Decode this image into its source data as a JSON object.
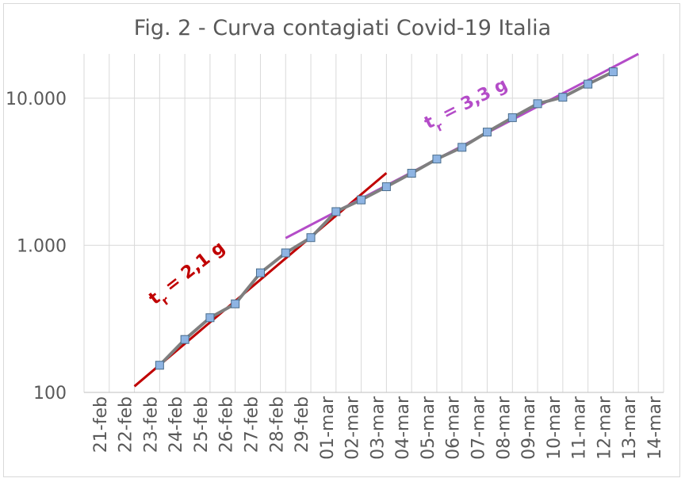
{
  "chart_data": {
    "type": "line",
    "title": "Fig. 2 - Curva contagiati Covid-19 Italia",
    "xlabel": "",
    "ylabel": "",
    "y_scale": "log",
    "ylim": [
      100,
      20000
    ],
    "grid": true,
    "categories": [
      "21-feb",
      "22-feb",
      "23-feb",
      "24-feb",
      "25-feb",
      "26-feb",
      "27-feb",
      "28-feb",
      "29-feb",
      "01-mar",
      "02-mar",
      "03-mar",
      "04-mar",
      "05-mar",
      "06-mar",
      "07-mar",
      "08-mar",
      "09-mar",
      "10-mar",
      "11-mar",
      "12-mar",
      "13-mar",
      "14-mar"
    ],
    "y_ticks": [
      100,
      1000,
      10000
    ],
    "y_tick_labels": [
      "100",
      "1.000",
      "10.000"
    ],
    "series": [
      {
        "values": [
          null,
          null,
          153,
          229,
          322,
          400,
          650,
          888,
          1128,
          1694,
          2036,
          2502,
          3089,
          3858,
          4636,
          5883,
          7375,
          9172,
          10149,
          12462,
          15113,
          null,
          null
        ],
        "color": "#7f7f7f",
        "marker_color": "#8eb4e3"
      }
    ],
    "trend_lines": [
      {
        "x": [
          "22-feb",
          "03-mar"
        ],
        "y": [
          110,
          3100
        ],
        "color": "#c00000"
      },
      {
        "x": [
          "28-feb",
          "13-mar"
        ],
        "y": [
          1120,
          20000
        ],
        "color": "#b44cc8"
      }
    ],
    "annotations": [
      {
        "text_main": "t",
        "text_sub": "r",
        "text_rest": " = 2,1 g",
        "color": "#c00000"
      },
      {
        "text_main": "t",
        "text_sub": "r",
        "text_rest": " = 3,3 g",
        "color": "#b44cc8"
      }
    ]
  }
}
